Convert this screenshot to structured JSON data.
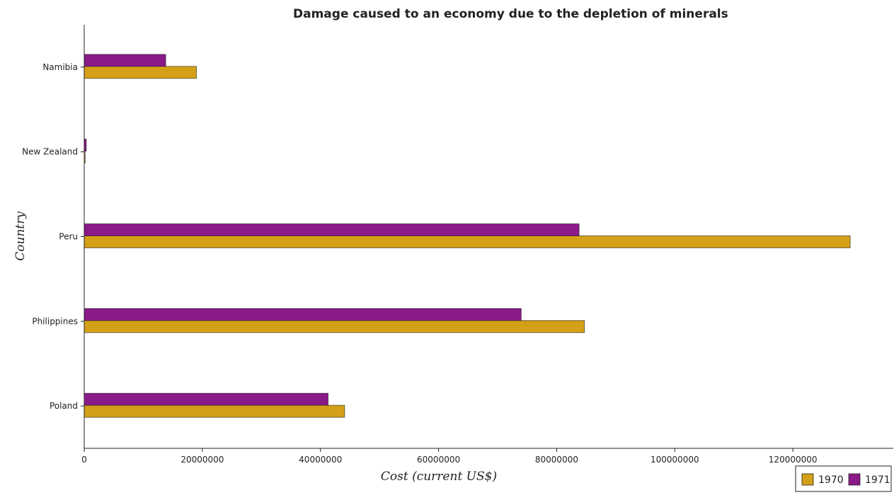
{
  "chart_data": {
    "type": "bar",
    "orientation": "horizontal",
    "title": "Damage caused to an economy due to the depletion of minerals",
    "xlabel": "Cost (current US$)",
    "ylabel": "Country",
    "categories": [
      "Namibia",
      "New Zealand",
      "Peru",
      "Philippines",
      "Poland"
    ],
    "series": [
      {
        "name": "1970",
        "color": "#d4a017",
        "values": [
          19000000,
          150000,
          129700000,
          84700000,
          44100000
        ]
      },
      {
        "name": "1971",
        "color": "#8b1a89",
        "values": [
          13800000,
          350000,
          83800000,
          74000000,
          41300000
        ]
      }
    ],
    "xlim": [
      0,
      137000000
    ],
    "xticks": [
      0,
      20000000,
      40000000,
      60000000,
      80000000,
      100000000,
      120000000
    ],
    "xtick_labels": [
      "0",
      "20000000",
      "40000000",
      "60000000",
      "80000000",
      "100000000",
      "120000000"
    ],
    "grid": false,
    "legend_position": "bottom-right"
  }
}
